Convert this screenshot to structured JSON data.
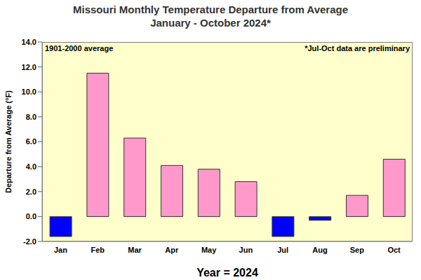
{
  "chart_data": {
    "type": "bar",
    "title": "Missouri Monthly Temperature Departure from Average",
    "subtitle": "January - October 2024*",
    "annotations": [
      "1901-2000 average",
      "*Jul-Oct data are preliminary"
    ],
    "x_label": "Year = 2024",
    "y_label": "Departure from Average (°F)",
    "categories": [
      "Jan",
      "Feb",
      "Mar",
      "Apr",
      "May",
      "Jun",
      "Jul",
      "Aug",
      "Sep",
      "Oct"
    ],
    "values": [
      -1.6,
      11.5,
      6.3,
      4.1,
      3.8,
      2.8,
      -1.6,
      -0.3,
      1.7,
      4.6
    ],
    "colors": [
      "#0000ff",
      "#ff99cc",
      "#ff99cc",
      "#ff99cc",
      "#ff99cc",
      "#ff99cc",
      "#0000ff",
      "#0000ff",
      "#ff99cc",
      "#ff99cc"
    ],
    "ylim": [
      -2,
      14
    ],
    "yticks": [
      {
        "value": -2,
        "label": "-2.0"
      },
      {
        "value": 0,
        "label": "0.0"
      },
      {
        "value": 2,
        "label": "2.0"
      },
      {
        "value": 4,
        "label": "4.0"
      },
      {
        "value": 6,
        "label": "6.0"
      },
      {
        "value": 8,
        "label": "8.0"
      },
      {
        "value": 10,
        "label": "10.0"
      },
      {
        "value": 12,
        "label": "12.0"
      },
      {
        "value": 14,
        "label": "14.0"
      }
    ],
    "grid": false
  }
}
